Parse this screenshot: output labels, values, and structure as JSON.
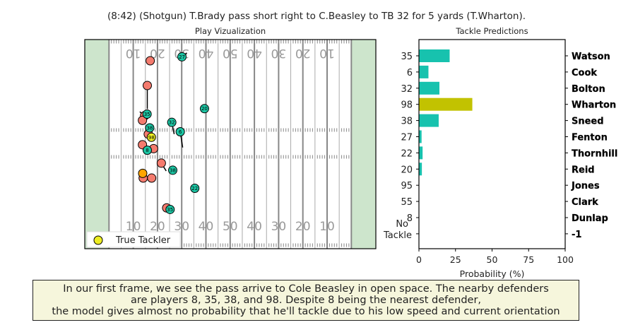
{
  "figure": {
    "title": "(8:42) (Shotgun) T.Brady pass short right to C.Beasley to TB 32 for 5 yards (T.Wharton).",
    "caption_lines": [
      "In our first frame, we see the pass arrive to Cole Beasley in open space. The nearby defenders",
      "are players 8, 35, 38, and 98. Despite 8 being the nearest defender,",
      " the model gives almost no probability that he'll tackle due to his low speed and current orientation"
    ]
  },
  "chart_data": [
    {
      "type": "scatter",
      "title": "Play Vizualization",
      "yard_markers_top": [
        "10",
        "20",
        "30",
        "40",
        "50",
        "40",
        "30",
        "20",
        "10"
      ],
      "yard_markers_bottom": [
        "10",
        "20",
        "30",
        "40",
        "50",
        "40",
        "30",
        "20",
        "10"
      ],
      "legend": {
        "label": "True Tackler",
        "placement": "lower-left"
      },
      "colors": {
        "offense": "#f47b6e",
        "defense": "#1cc6a4",
        "ball_carrier": "#ffa500",
        "true_tackler": "#eded22",
        "endzone": "#cde5cc",
        "field": "#ffffff"
      },
      "players": [
        {
          "team": "offense",
          "x": 27,
          "y": 47.9,
          "dx": 0,
          "dy": 0
        },
        {
          "team": "offense",
          "x": 25.8,
          "y": 41.6,
          "dx": 0,
          "dy": -6
        },
        {
          "team": "offense",
          "x": 24.7,
          "y": 33.9,
          "dx": -2,
          "dy": 1
        },
        {
          "team": "offense",
          "x": 23.8,
          "y": 32.7,
          "dx": 1,
          "dy": 1
        },
        {
          "team": "offense",
          "x": 26.2,
          "y": 29.2,
          "dx": 0,
          "dy": 0
        },
        {
          "team": "offense",
          "x": 23.8,
          "y": 26.5,
          "dx": -1,
          "dy": 1
        },
        {
          "team": "offense",
          "x": 28.4,
          "y": 25.5,
          "dx": 0,
          "dy": 0
        },
        {
          "team": "offense",
          "x": 31.6,
          "y": 21.8,
          "dx": 2,
          "dy": -2
        },
        {
          "team": "offense",
          "x": 27.6,
          "y": 18.0,
          "dx": 0,
          "dy": 0
        },
        {
          "team": "offense",
          "x": 33.8,
          "y": 10.4,
          "dx": 0,
          "dy": 0
        },
        {
          "team": "offense",
          "x": 24.1,
          "y": 18.0,
          "dx": 0,
          "dy": 0
        },
        {
          "team": "ball_carrier",
          "x": 23.9,
          "y": 19.2,
          "dx": 0,
          "dy": 0
        },
        {
          "team": "defense",
          "number": "27",
          "x": 40.1,
          "y": 48.9,
          "dx": 2,
          "dy": 1
        },
        {
          "team": "defense",
          "number": "20",
          "x": 49.4,
          "y": 35.7,
          "dx": 0,
          "dy": 0
        },
        {
          "team": "defense",
          "number": "35",
          "x": 25.7,
          "y": 34.3,
          "dx": -1,
          "dy": -1
        },
        {
          "team": "defense",
          "number": "32",
          "x": 35.9,
          "y": 32.2,
          "dx": 1,
          "dy": -3
        },
        {
          "team": "defense",
          "number": "38",
          "x": 26.8,
          "y": 30.8,
          "dx": 0,
          "dy": 0
        },
        {
          "team": "defense",
          "number": "6",
          "x": 39.4,
          "y": 29.8,
          "dx": 1,
          "dy": -4
        },
        {
          "team": "defense",
          "number": "8",
          "x": 25.8,
          "y": 25.1,
          "dx": -1,
          "dy": -1
        },
        {
          "team": "true_tackler",
          "number": "98",
          "x": 27.5,
          "y": 28.4,
          "dx": 0,
          "dy": 0
        },
        {
          "team": "defense",
          "number": "38",
          "x": 36.3,
          "y": 20.0,
          "dx": 0,
          "dy": -1
        },
        {
          "team": "defense",
          "number": "22",
          "x": 45.4,
          "y": 15.4,
          "dx": 1,
          "dy": -1
        },
        {
          "team": "defense",
          "number": "35",
          "x": 35.2,
          "y": 10.0,
          "dx": 0,
          "dy": 0
        }
      ]
    },
    {
      "type": "bar",
      "orientation": "horizontal",
      "title": "Tackle Predictions",
      "xlabel": "Probability (%)",
      "xlim": [
        0,
        100
      ],
      "xticks": [
        "0",
        "25",
        "50",
        "75",
        "100"
      ],
      "left_labels": [
        "35",
        "6",
        "32",
        "98",
        "38",
        "27",
        "22",
        "20",
        "95",
        "55",
        "8",
        "No\nTackle"
      ],
      "right_labels": [
        "Watson",
        "Cook",
        "Bolton",
        "Wharton",
        "Sneed",
        "Fenton",
        "Thornhill",
        "Reid",
        "Jones",
        "Clark",
        "Dunlap",
        "-1"
      ],
      "values": [
        21,
        6.5,
        14,
        36.5,
        13.5,
        1.8,
        2.5,
        2,
        0,
        0,
        0,
        0
      ],
      "bar_colors": [
        "#17c2ae",
        "#17c2ae",
        "#17c2ae",
        "#c2c200",
        "#17c2ae",
        "#17c2ae",
        "#17c2ae",
        "#17c2ae",
        "#17c2ae",
        "#17c2ae",
        "#17c2ae",
        "#17c2ae"
      ]
    }
  ]
}
